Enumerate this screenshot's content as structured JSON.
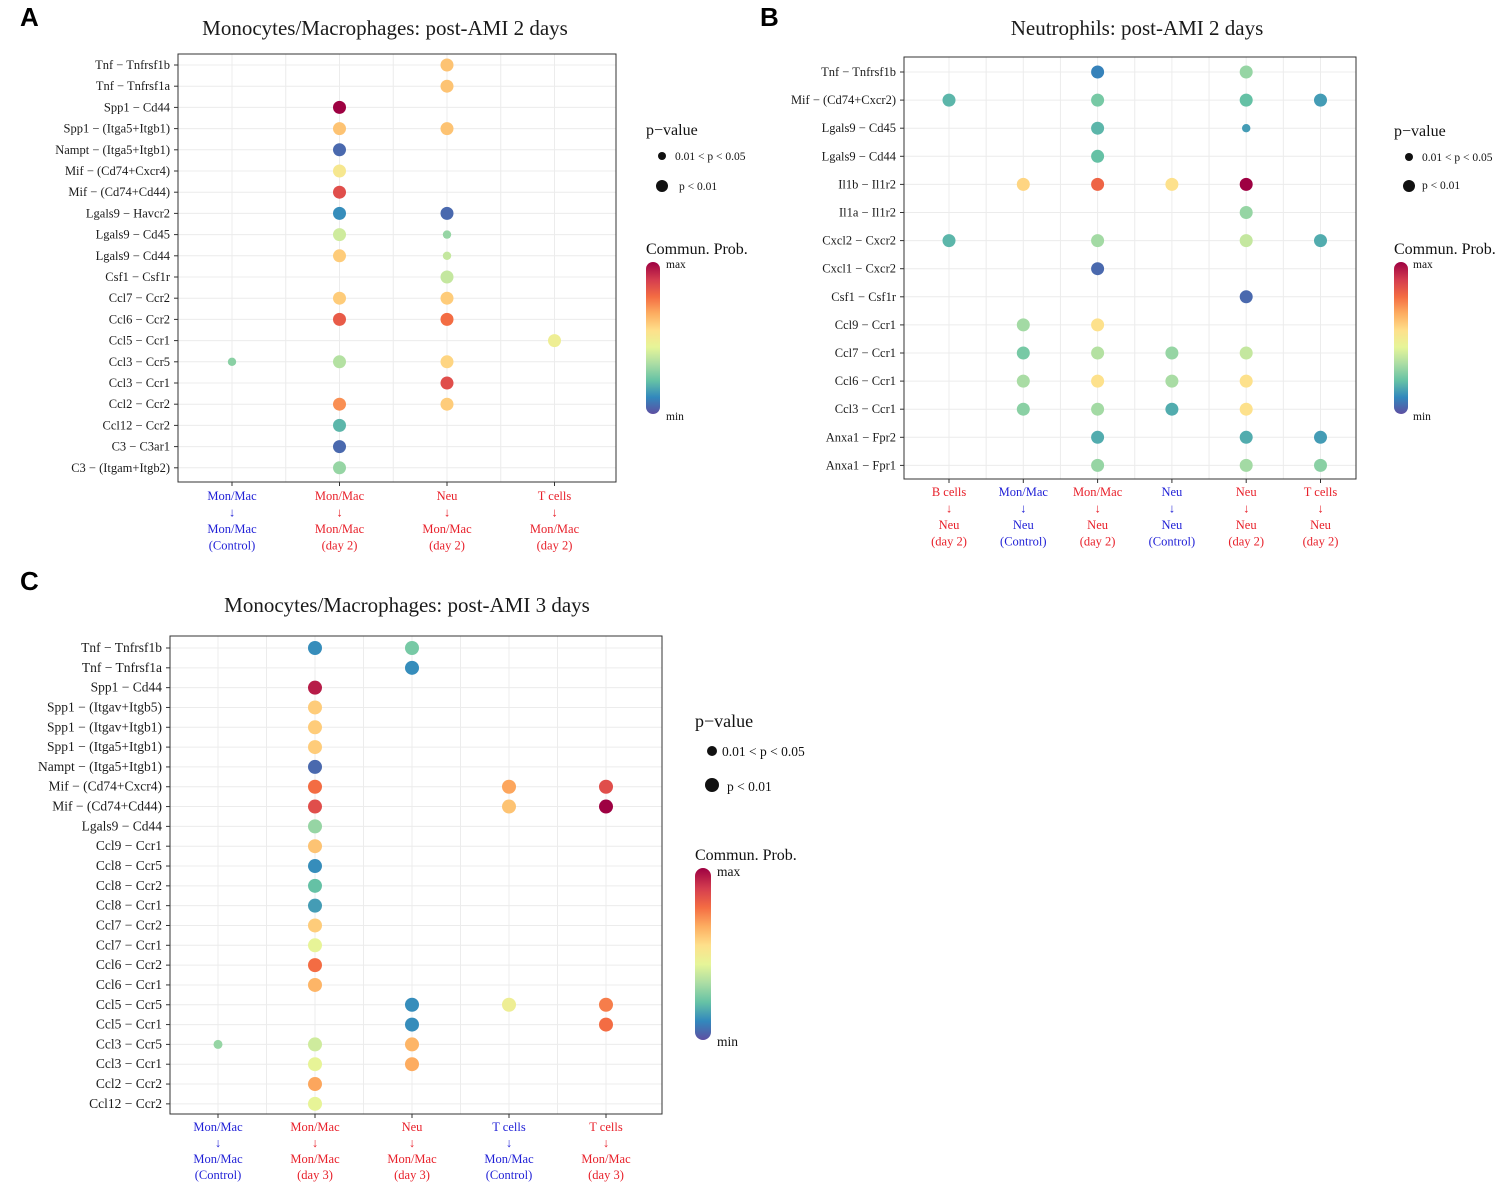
{
  "legend": {
    "pvalue_title": "p−value",
    "pvalue_small": "0.01 < p < 0.05",
    "pvalue_large": "p < 0.01",
    "prob_title": "Commun. Prob.",
    "prob_max": "max",
    "prob_min": "min"
  },
  "colors": {
    "source_control": "#1f1fd6",
    "source_day": "#e8202a",
    "scale": [
      "#5e4fa2",
      "#3288bd",
      "#66c2a5",
      "#abdda4",
      "#e6f598",
      "#fee08b",
      "#fdae61",
      "#f46d43",
      "#d53e4f",
      "#9e0142"
    ]
  },
  "chart_data": [
    {
      "type": "scatter",
      "panel": "A",
      "title": "Monocytes/Macrophages: post-AMI 2 days",
      "columns": [
        {
          "source": "Mon/Mac",
          "arrow": "↓",
          "target": "Mon/Mac",
          "condition": "(Control)",
          "group": "control"
        },
        {
          "source": "Mon/Mac",
          "arrow": "↓",
          "target": "Mon/Mac",
          "condition": "(day 2)",
          "group": "day"
        },
        {
          "source": "Neu",
          "arrow": "↓",
          "target": "Mon/Mac",
          "condition": "(day 2)",
          "group": "day"
        },
        {
          "source": "T cells",
          "arrow": "↓",
          "target": "Mon/Mac",
          "condition": "(day 2)",
          "group": "day"
        }
      ],
      "rows": [
        "Tnf − Tnfrsf1b",
        "Tnf − Tnfrsf1a",
        "Spp1 − Cd44",
        "Spp1 − (Itga5+Itgb1)",
        "Nampt − (Itga5+Itgb1)",
        "Mif − (Cd74+Cxcr4)",
        "Mif − (Cd74+Cd44)",
        "Lgals9 − Havcr2",
        "Lgals9 − Cd45",
        "Lgals9 − Cd44",
        "Csf1 − Csf1r",
        "Ccl7 − Ccr2",
        "Ccl6 − Ccr2",
        "Ccl5 − Ccr1",
        "Ccl3 − Ccr5",
        "Ccl3 − Ccr1",
        "Ccl2 − Ccr2",
        "Ccl12 − Ccr2",
        "C3 − C3ar1",
        "C3 − (Itgam+Itgb2)"
      ],
      "points": [
        {
          "row": 0,
          "col": 2,
          "prob": 0.62,
          "p": "<0.01"
        },
        {
          "row": 1,
          "col": 2,
          "prob": 0.62,
          "p": "<0.01"
        },
        {
          "row": 2,
          "col": 1,
          "prob": 1.0,
          "p": "<0.01"
        },
        {
          "row": 3,
          "col": 1,
          "prob": 0.62,
          "p": "<0.01"
        },
        {
          "row": 3,
          "col": 2,
          "prob": 0.62,
          "p": "<0.01"
        },
        {
          "row": 4,
          "col": 1,
          "prob": 0.05,
          "p": "<0.01"
        },
        {
          "row": 5,
          "col": 1,
          "prob": 0.52,
          "p": "<0.01"
        },
        {
          "row": 6,
          "col": 1,
          "prob": 0.85,
          "p": "<0.01"
        },
        {
          "row": 7,
          "col": 1,
          "prob": 0.12,
          "p": "<0.01"
        },
        {
          "row": 7,
          "col": 2,
          "prob": 0.05,
          "p": "<0.01"
        },
        {
          "row": 8,
          "col": 1,
          "prob": 0.4,
          "p": "<0.01"
        },
        {
          "row": 8,
          "col": 2,
          "prob": 0.3,
          "p": "0.01-0.05"
        },
        {
          "row": 9,
          "col": 1,
          "prob": 0.6,
          "p": "<0.01"
        },
        {
          "row": 9,
          "col": 2,
          "prob": 0.38,
          "p": "0.01-0.05"
        },
        {
          "row": 10,
          "col": 2,
          "prob": 0.38,
          "p": "<0.01"
        },
        {
          "row": 11,
          "col": 1,
          "prob": 0.6,
          "p": "<0.01"
        },
        {
          "row": 11,
          "col": 2,
          "prob": 0.6,
          "p": "<0.01"
        },
        {
          "row": 12,
          "col": 1,
          "prob": 0.82,
          "p": "<0.01"
        },
        {
          "row": 12,
          "col": 2,
          "prob": 0.78,
          "p": "<0.01"
        },
        {
          "row": 13,
          "col": 3,
          "prob": 0.48,
          "p": "<0.01"
        },
        {
          "row": 14,
          "col": 0,
          "prob": 0.28,
          "p": "0.01-0.05"
        },
        {
          "row": 14,
          "col": 1,
          "prob": 0.35,
          "p": "<0.01"
        },
        {
          "row": 14,
          "col": 2,
          "prob": 0.58,
          "p": "<0.01"
        },
        {
          "row": 15,
          "col": 2,
          "prob": 0.85,
          "p": "<0.01"
        },
        {
          "row": 16,
          "col": 1,
          "prob": 0.72,
          "p": "<0.01"
        },
        {
          "row": 16,
          "col": 2,
          "prob": 0.6,
          "p": "<0.01"
        },
        {
          "row": 17,
          "col": 1,
          "prob": 0.2,
          "p": "<0.01"
        },
        {
          "row": 18,
          "col": 1,
          "prob": 0.05,
          "p": "<0.01"
        },
        {
          "row": 19,
          "col": 1,
          "prob": 0.3,
          "p": "<0.01"
        }
      ]
    },
    {
      "type": "scatter",
      "panel": "B",
      "title": "Neutrophils: post-AMI 2 days",
      "columns": [
        {
          "source": "B cells",
          "arrow": "↓",
          "target": "Neu",
          "condition": "(day 2)",
          "group": "day"
        },
        {
          "source": "Mon/Mac",
          "arrow": "↓",
          "target": "Neu",
          "condition": "(Control)",
          "group": "control"
        },
        {
          "source": "Mon/Mac",
          "arrow": "↓",
          "target": "Neu",
          "condition": "(day 2)",
          "group": "day"
        },
        {
          "source": "Neu",
          "arrow": "↓",
          "target": "Neu",
          "condition": "(Control)",
          "group": "control"
        },
        {
          "source": "Neu",
          "arrow": "↓",
          "target": "Neu",
          "condition": "(day 2)",
          "group": "day"
        },
        {
          "source": "T cells",
          "arrow": "↓",
          "target": "Neu",
          "condition": "(day 2)",
          "group": "day"
        }
      ],
      "rows": [
        "Tnf − Tnfrsf1b",
        "Mif − (Cd74+Cxcr2)",
        "Lgals9 − Cd45",
        "Lgals9 − Cd44",
        "Il1b − Il1r2",
        "Il1a − Il1r2",
        "Cxcl2 − Cxcr2",
        "Cxcl1 − Cxcr2",
        "Csf1 − Csf1r",
        "Ccl9 − Ccr1",
        "Ccl7 − Ccr1",
        "Ccl6 − Ccr1",
        "Ccl3 − Ccr1",
        "Anxa1 − Fpr2",
        "Anxa1 − Fpr1"
      ],
      "points": [
        {
          "row": 0,
          "col": 2,
          "prob": 0.1,
          "p": "<0.01"
        },
        {
          "row": 0,
          "col": 4,
          "prob": 0.3,
          "p": "<0.01"
        },
        {
          "row": 1,
          "col": 0,
          "prob": 0.2,
          "p": "<0.01"
        },
        {
          "row": 1,
          "col": 2,
          "prob": 0.25,
          "p": "<0.01"
        },
        {
          "row": 1,
          "col": 4,
          "prob": 0.22,
          "p": "<0.01"
        },
        {
          "row": 1,
          "col": 5,
          "prob": 0.15,
          "p": "<0.01"
        },
        {
          "row": 2,
          "col": 2,
          "prob": 0.2,
          "p": "<0.01"
        },
        {
          "row": 2,
          "col": 4,
          "prob": 0.15,
          "p": "0.01-0.05"
        },
        {
          "row": 3,
          "col": 2,
          "prob": 0.22,
          "p": "<0.01"
        },
        {
          "row": 4,
          "col": 1,
          "prob": 0.58,
          "p": "<0.01"
        },
        {
          "row": 4,
          "col": 2,
          "prob": 0.8,
          "p": "<0.01"
        },
        {
          "row": 4,
          "col": 3,
          "prob": 0.55,
          "p": "<0.01"
        },
        {
          "row": 4,
          "col": 4,
          "prob": 1.0,
          "p": "<0.01"
        },
        {
          "row": 5,
          "col": 4,
          "prob": 0.3,
          "p": "<0.01"
        },
        {
          "row": 6,
          "col": 0,
          "prob": 0.2,
          "p": "<0.01"
        },
        {
          "row": 6,
          "col": 2,
          "prob": 0.32,
          "p": "<0.01"
        },
        {
          "row": 6,
          "col": 4,
          "prob": 0.38,
          "p": "<0.01"
        },
        {
          "row": 6,
          "col": 5,
          "prob": 0.18,
          "p": "<0.01"
        },
        {
          "row": 7,
          "col": 2,
          "prob": 0.05,
          "p": "<0.01"
        },
        {
          "row": 8,
          "col": 4,
          "prob": 0.05,
          "p": "<0.01"
        },
        {
          "row": 9,
          "col": 1,
          "prob": 0.32,
          "p": "<0.01"
        },
        {
          "row": 9,
          "col": 2,
          "prob": 0.55,
          "p": "<0.01"
        },
        {
          "row": 10,
          "col": 1,
          "prob": 0.25,
          "p": "<0.01"
        },
        {
          "row": 10,
          "col": 2,
          "prob": 0.35,
          "p": "<0.01"
        },
        {
          "row": 10,
          "col": 3,
          "prob": 0.3,
          "p": "<0.01"
        },
        {
          "row": 10,
          "col": 4,
          "prob": 0.38,
          "p": "<0.01"
        },
        {
          "row": 11,
          "col": 1,
          "prob": 0.33,
          "p": "<0.01"
        },
        {
          "row": 11,
          "col": 2,
          "prob": 0.55,
          "p": "<0.01"
        },
        {
          "row": 11,
          "col": 3,
          "prob": 0.33,
          "p": "<0.01"
        },
        {
          "row": 11,
          "col": 4,
          "prob": 0.55,
          "p": "<0.01"
        },
        {
          "row": 12,
          "col": 1,
          "prob": 0.28,
          "p": "<0.01"
        },
        {
          "row": 12,
          "col": 2,
          "prob": 0.32,
          "p": "<0.01"
        },
        {
          "row": 12,
          "col": 3,
          "prob": 0.18,
          "p": "<0.01"
        },
        {
          "row": 12,
          "col": 4,
          "prob": 0.55,
          "p": "<0.01"
        },
        {
          "row": 13,
          "col": 2,
          "prob": 0.18,
          "p": "<0.01"
        },
        {
          "row": 13,
          "col": 4,
          "prob": 0.18,
          "p": "<0.01"
        },
        {
          "row": 13,
          "col": 5,
          "prob": 0.15,
          "p": "<0.01"
        },
        {
          "row": 14,
          "col": 2,
          "prob": 0.3,
          "p": "<0.01"
        },
        {
          "row": 14,
          "col": 4,
          "prob": 0.32,
          "p": "<0.01"
        },
        {
          "row": 14,
          "col": 5,
          "prob": 0.28,
          "p": "<0.01"
        }
      ]
    },
    {
      "type": "scatter",
      "panel": "C",
      "title": "Monocytes/Macrophages: post-AMI 3 days",
      "columns": [
        {
          "source": "Mon/Mac",
          "arrow": "↓",
          "target": "Mon/Mac",
          "condition": "(Control)",
          "group": "control"
        },
        {
          "source": "Mon/Mac",
          "arrow": "↓",
          "target": "Mon/Mac",
          "condition": "(day 3)",
          "group": "day"
        },
        {
          "source": "Neu",
          "arrow": "↓",
          "target": "Mon/Mac",
          "condition": "(day 3)",
          "group": "day"
        },
        {
          "source": "T cells",
          "arrow": "↓",
          "target": "Mon/Mac",
          "condition": "(Control)",
          "group": "control"
        },
        {
          "source": "T cells",
          "arrow": "↓",
          "target": "Mon/Mac",
          "condition": "(day 3)",
          "group": "day"
        }
      ],
      "rows": [
        "Tnf − Tnfrsf1b",
        "Tnf − Tnfrsf1a",
        "Spp1 − Cd44",
        "Spp1 − (Itgav+Itgb5)",
        "Spp1 − (Itgav+Itgb1)",
        "Spp1 − (Itga5+Itgb1)",
        "Nampt − (Itga5+Itgb1)",
        "Mif − (Cd74+Cxcr4)",
        "Mif − (Cd74+Cd44)",
        "Lgals9 − Cd44",
        "Ccl9 − Ccr1",
        "Ccl8 − Ccr5",
        "Ccl8 − Ccr2",
        "Ccl8 − Ccr1",
        "Ccl7 − Ccr2",
        "Ccl7 − Ccr1",
        "Ccl6 − Ccr2",
        "Ccl6 − Ccr1",
        "Ccl5 − Ccr5",
        "Ccl5 − Ccr1",
        "Ccl3 − Ccr5",
        "Ccl3 − Ccr1",
        "Ccl2 − Ccr2",
        "Ccl12 − Ccr2"
      ],
      "points": [
        {
          "row": 0,
          "col": 1,
          "prob": 0.12,
          "p": "<0.01"
        },
        {
          "row": 0,
          "col": 2,
          "prob": 0.25,
          "p": "<0.01"
        },
        {
          "row": 1,
          "col": 2,
          "prob": 0.12,
          "p": "<0.01"
        },
        {
          "row": 2,
          "col": 1,
          "prob": 0.95,
          "p": "<0.01"
        },
        {
          "row": 3,
          "col": 1,
          "prob": 0.6,
          "p": "<0.01"
        },
        {
          "row": 4,
          "col": 1,
          "prob": 0.6,
          "p": "<0.01"
        },
        {
          "row": 5,
          "col": 1,
          "prob": 0.6,
          "p": "<0.01"
        },
        {
          "row": 6,
          "col": 1,
          "prob": 0.05,
          "p": "<0.01"
        },
        {
          "row": 7,
          "col": 1,
          "prob": 0.78,
          "p": "<0.01"
        },
        {
          "row": 7,
          "col": 3,
          "prob": 0.68,
          "p": "<0.01"
        },
        {
          "row": 7,
          "col": 4,
          "prob": 0.85,
          "p": "<0.01"
        },
        {
          "row": 8,
          "col": 1,
          "prob": 0.85,
          "p": "<0.01"
        },
        {
          "row": 8,
          "col": 3,
          "prob": 0.62,
          "p": "<0.01"
        },
        {
          "row": 8,
          "col": 4,
          "prob": 1.0,
          "p": "<0.01"
        },
        {
          "row": 9,
          "col": 1,
          "prob": 0.3,
          "p": "<0.01"
        },
        {
          "row": 10,
          "col": 1,
          "prob": 0.62,
          "p": "<0.01"
        },
        {
          "row": 11,
          "col": 1,
          "prob": 0.12,
          "p": "<0.01"
        },
        {
          "row": 12,
          "col": 1,
          "prob": 0.22,
          "p": "<0.01"
        },
        {
          "row": 13,
          "col": 1,
          "prob": 0.15,
          "p": "<0.01"
        },
        {
          "row": 14,
          "col": 1,
          "prob": 0.6,
          "p": "<0.01"
        },
        {
          "row": 15,
          "col": 1,
          "prob": 0.45,
          "p": "<0.01"
        },
        {
          "row": 16,
          "col": 1,
          "prob": 0.78,
          "p": "<0.01"
        },
        {
          "row": 17,
          "col": 1,
          "prob": 0.65,
          "p": "<0.01"
        },
        {
          "row": 18,
          "col": 2,
          "prob": 0.12,
          "p": "<0.01"
        },
        {
          "row": 18,
          "col": 3,
          "prob": 0.48,
          "p": "<0.01"
        },
        {
          "row": 18,
          "col": 4,
          "prob": 0.75,
          "p": "<0.01"
        },
        {
          "row": 19,
          "col": 2,
          "prob": 0.12,
          "p": "<0.01"
        },
        {
          "row": 19,
          "col": 4,
          "prob": 0.78,
          "p": "<0.01"
        },
        {
          "row": 20,
          "col": 0,
          "prob": 0.3,
          "p": "0.01-0.05"
        },
        {
          "row": 20,
          "col": 1,
          "prob": 0.4,
          "p": "<0.01"
        },
        {
          "row": 20,
          "col": 2,
          "prob": 0.65,
          "p": "<0.01"
        },
        {
          "row": 21,
          "col": 1,
          "prob": 0.45,
          "p": "<0.01"
        },
        {
          "row": 21,
          "col": 2,
          "prob": 0.67,
          "p": "<0.01"
        },
        {
          "row": 22,
          "col": 1,
          "prob": 0.68,
          "p": "<0.01"
        },
        {
          "row": 23,
          "col": 1,
          "prob": 0.45,
          "p": "<0.01"
        }
      ]
    }
  ]
}
